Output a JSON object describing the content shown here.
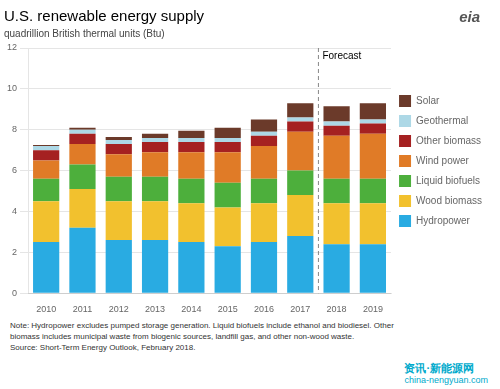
{
  "chart_data": {
    "type": "bar",
    "stacked": true,
    "title": "U.S. renewable energy supply",
    "subtitle": "quadrillion British thermal units (Btu)",
    "categories": [
      "2010",
      "2011",
      "2012",
      "2013",
      "2014",
      "2015",
      "2016",
      "2017",
      "2018",
      "2019"
    ],
    "series": [
      {
        "name": "Hydropower",
        "color": "#29ABE2",
        "values": [
          2.5,
          3.2,
          2.6,
          2.6,
          2.5,
          2.3,
          2.5,
          2.8,
          2.4,
          2.4
        ]
      },
      {
        "name": "Wood biomass",
        "color": "#F2C12E",
        "values": [
          2.0,
          1.9,
          1.9,
          1.9,
          1.9,
          1.9,
          1.9,
          2.0,
          2.0,
          2.0
        ]
      },
      {
        "name": "Liquid biofuels",
        "color": "#4DAF3C",
        "values": [
          1.1,
          1.2,
          1.2,
          1.2,
          1.2,
          1.2,
          1.2,
          1.2,
          1.2,
          1.2
        ]
      },
      {
        "name": "Wind power",
        "color": "#E07B27",
        "values": [
          0.9,
          1.0,
          1.1,
          1.2,
          1.3,
          1.5,
          1.6,
          1.9,
          2.1,
          2.2
        ]
      },
      {
        "name": "Other biomass",
        "color": "#A52121",
        "values": [
          0.5,
          0.5,
          0.5,
          0.5,
          0.5,
          0.5,
          0.5,
          0.5,
          0.5,
          0.5
        ]
      },
      {
        "name": "Geothermal",
        "color": "#ADD8E6",
        "values": [
          0.2,
          0.2,
          0.2,
          0.2,
          0.2,
          0.2,
          0.2,
          0.2,
          0.2,
          0.2
        ]
      },
      {
        "name": "Solar",
        "color": "#6B3A2A",
        "values": [
          0.05,
          0.1,
          0.15,
          0.2,
          0.35,
          0.5,
          0.6,
          0.7,
          0.75,
          0.8
        ]
      }
    ],
    "ylim": [
      0,
      12
    ],
    "yticks": [
      0,
      2,
      4,
      6,
      8,
      10,
      12
    ],
    "grid": true,
    "legend": "right",
    "annotations": [
      {
        "text": "Forecast",
        "x": "2018"
      }
    ],
    "notes": [
      "Note: Hydropower excludes pumped storage generation.  Liquid biofuels include ethanol and biodiesel.  Other",
      "biomass includes municipal waste from biogenic sources, landfill gas, and other non-wood waste."
    ],
    "source": "Source: Short-Term Energy Outlook, February 2018.",
    "logo": "eia",
    "watermark": [
      "资讯·新能源网",
      "china-nengyuan.com"
    ]
  }
}
